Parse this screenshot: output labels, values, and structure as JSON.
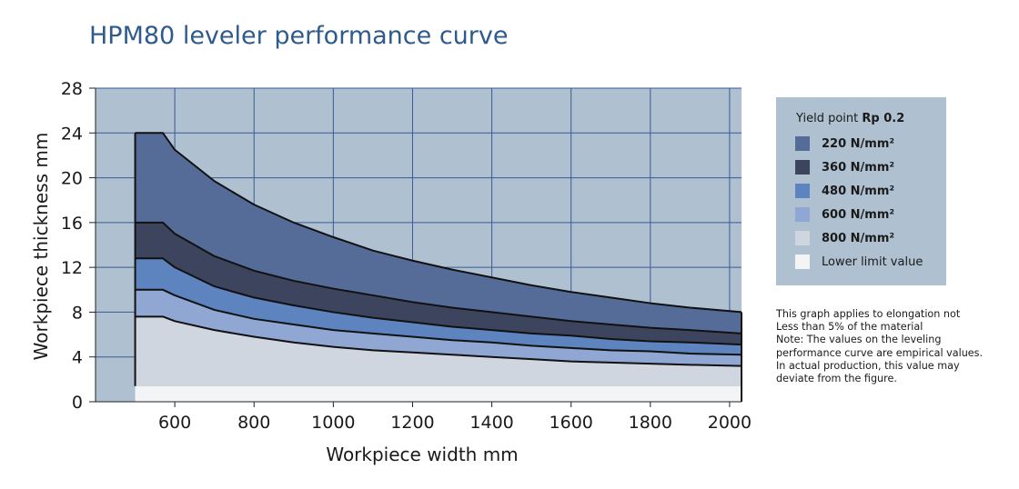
{
  "chart_data": {
    "type": "area",
    "title": "HPM80 leveler performance curve",
    "xlabel": "Workpiece width mm",
    "ylabel": "Workpiece thickness mm",
    "xlim": [
      400,
      2030
    ],
    "ylim": [
      0,
      28
    ],
    "x_ticks": [
      600,
      800,
      1000,
      1200,
      1400,
      1600,
      1800,
      2000
    ],
    "y_ticks": [
      0,
      4,
      8,
      12,
      16,
      20,
      24,
      28
    ],
    "grid": true,
    "legend_position": "right",
    "lower_limit": {
      "name": "Lower limit value",
      "x_range": [
        500,
        2030
      ],
      "value": 1.4,
      "color": "#f2f4f6"
    },
    "series": [
      {
        "name": "220 N/mm²",
        "color": "#566c98",
        "x": [
          500,
          570,
          600,
          700,
          800,
          900,
          1000,
          1100,
          1200,
          1300,
          1400,
          1500,
          1600,
          1700,
          1800,
          1900,
          2030
        ],
        "y": [
          24,
          24,
          22.5,
          19.7,
          17.6,
          16,
          14.7,
          13.5,
          12.6,
          11.8,
          11.1,
          10.4,
          9.8,
          9.3,
          8.8,
          8.4,
          8
        ]
      },
      {
        "name": "360 N/mm²",
        "color": "#3d455e",
        "x": [
          500,
          570,
          600,
          700,
          800,
          900,
          1000,
          1100,
          1200,
          1300,
          1400,
          1500,
          1600,
          1700,
          1800,
          1900,
          2030
        ],
        "y": [
          16,
          16,
          15,
          13,
          11.7,
          10.8,
          10.1,
          9.5,
          8.9,
          8.4,
          8,
          7.6,
          7.2,
          6.9,
          6.6,
          6.4,
          6.1
        ]
      },
      {
        "name": "480 N/mm²",
        "color": "#5e84c0",
        "x": [
          500,
          570,
          600,
          700,
          800,
          900,
          1000,
          1100,
          1200,
          1300,
          1400,
          1500,
          1600,
          1700,
          1800,
          1900,
          2030
        ],
        "y": [
          12.8,
          12.8,
          12,
          10.3,
          9.3,
          8.6,
          8,
          7.5,
          7.1,
          6.7,
          6.4,
          6.1,
          5.9,
          5.6,
          5.4,
          5.3,
          5.1
        ]
      },
      {
        "name": "600 N/mm²",
        "color": "#8fa7d2",
        "x": [
          500,
          570,
          600,
          700,
          800,
          900,
          1000,
          1100,
          1200,
          1300,
          1400,
          1500,
          1600,
          1700,
          1800,
          1900,
          2030
        ],
        "y": [
          10,
          10,
          9.5,
          8.2,
          7.4,
          6.9,
          6.4,
          6.1,
          5.8,
          5.5,
          5.3,
          5,
          4.8,
          4.6,
          4.5,
          4.3,
          4.2
        ]
      },
      {
        "name": "800 N/mm²",
        "color": "#cfd6df",
        "x": [
          500,
          570,
          600,
          700,
          800,
          900,
          1000,
          1100,
          1200,
          1300,
          1400,
          1500,
          1600,
          1700,
          1800,
          1900,
          2030
        ],
        "y": [
          7.6,
          7.6,
          7.2,
          6.4,
          5.8,
          5.3,
          4.9,
          4.6,
          4.4,
          4.2,
          4,
          3.8,
          3.6,
          3.5,
          3.4,
          3.3,
          3.2
        ]
      }
    ]
  },
  "legend": {
    "heading_prefix": "Yield point ",
    "heading_bold": "Rp 0.2",
    "items": [
      {
        "label": "220 N/mm²",
        "color": "#566c98",
        "bold": true
      },
      {
        "label": "360 N/mm²",
        "color": "#3d455e",
        "bold": true
      },
      {
        "label": "480 N/mm²",
        "color": "#5e84c0",
        "bold": true
      },
      {
        "label": "600 N/mm²",
        "color": "#8fa7d2",
        "bold": true
      },
      {
        "label": "800 N/mm²",
        "color": "#cfd6df",
        "bold": true
      },
      {
        "label": "Lower limit value",
        "color": "#f2f4f6",
        "bold": false
      }
    ]
  },
  "note": {
    "lines": [
      "This graph applies to elongation not",
      "Less than 5% of the material",
      "Note: The values on the leveling",
      "performance curve are empirical values.",
      "In actual production, this value may",
      "deviate from the figure."
    ]
  },
  "colors": {
    "plot_background": "#afc0d0",
    "grid": "#3a5a96",
    "title": "#2e5a8e",
    "legend_background": "#afc0d0"
  }
}
